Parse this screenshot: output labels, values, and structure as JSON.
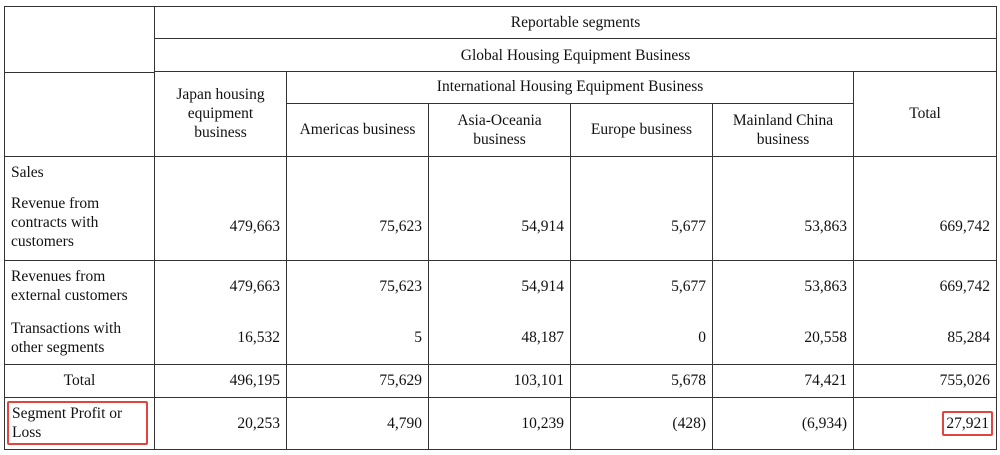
{
  "headers": {
    "reportable_segments": "Reportable segments",
    "global_housing": "Global Housing Equipment Business",
    "japan_housing": "Japan housing equipment business",
    "international_housing": "International Housing Equipment Business",
    "americas": "Americas business",
    "asia_oceania": "Asia-Oceania business",
    "europe": "Europe business",
    "mainland_china": "Mainland China business",
    "total": "Total"
  },
  "rows": {
    "sales_label": "Sales",
    "revenue_contracts": {
      "label": "Revenue from contracts with customers",
      "values": [
        "479,663",
        "75,623",
        "54,914",
        "5,677",
        "53,863",
        "669,742"
      ]
    },
    "revenues_external": {
      "label": "Revenues from external customers",
      "values": [
        "479,663",
        "75,623",
        "54,914",
        "5,677",
        "53,863",
        "669,742"
      ]
    },
    "transactions_other": {
      "label": "Transactions with other segments",
      "values": [
        "16,532",
        "5",
        "48,187",
        "0",
        "20,558",
        "85,284"
      ]
    },
    "total": {
      "label": "Total",
      "values": [
        "496,195",
        "75,629",
        "103,101",
        "5,678",
        "74,421",
        "755,026"
      ]
    },
    "segment_profit": {
      "label": "Segment Profit or Loss",
      "values": [
        "20,253",
        "4,790",
        "10,239",
        "(428)",
        "(6,934)",
        "27,921"
      ]
    }
  },
  "highlight_color": "#e0453f"
}
